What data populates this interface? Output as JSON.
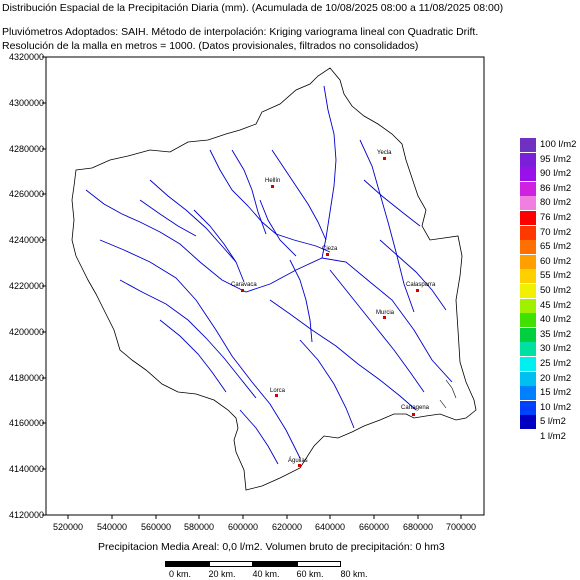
{
  "header": {
    "title_line": "Distribución Espacial de la Precipitación Diaria (mm). (Acumulada de 10/08/2025 08:00 a 11/08/2025 08:00)",
    "method_line": "Pluviómetros Adoptados: SAIH.  Método de interpolación: Kriging variograma lineal con Quadratic Drift.",
    "resolution_line": "Resolución de la malla en metros = 1000. (Datos provisionales, filtrados no consolidados)"
  },
  "axes": {
    "y_ticks": [
      "4320000",
      "4300000",
      "4280000",
      "4260000",
      "4240000",
      "4220000",
      "4200000",
      "4180000",
      "4160000",
      "4140000",
      "4120000"
    ],
    "x_ticks": [
      "520000",
      "540000",
      "560000",
      "580000",
      "600000",
      "620000",
      "640000",
      "660000",
      "680000",
      "700000"
    ]
  },
  "legend": [
    {
      "label": "100 l/m2",
      "color": "#7030c0"
    },
    {
      "label": "95 l/m2",
      "color": "#7a20d8"
    },
    {
      "label": "90 l/m2",
      "color": "#9a10e8"
    },
    {
      "label": "86 l/m2",
      "color": "#d020e0"
    },
    {
      "label": "80 l/m2",
      "color": "#f080e0"
    },
    {
      "label": "76 l/m2",
      "color": "#ff0000"
    },
    {
      "label": "70 l/m2",
      "color": "#ff3800"
    },
    {
      "label": "65 l/m2",
      "color": "#ff7000"
    },
    {
      "label": "60 l/m2",
      "color": "#ffa000"
    },
    {
      "label": "55 l/m2",
      "color": "#ffd000"
    },
    {
      "label": "50 l/m2",
      "color": "#f0f000"
    },
    {
      "label": "45 l/m2",
      "color": "#a0f000"
    },
    {
      "label": "40 l/m2",
      "color": "#40e000"
    },
    {
      "label": "35 l/m2",
      "color": "#00d040"
    },
    {
      "label": "30 l/m2",
      "color": "#00e0a0"
    },
    {
      "label": "25 l/m2",
      "color": "#00f0f0"
    },
    {
      "label": "20 l/m2",
      "color": "#00c0f0"
    },
    {
      "label": "15 l/m2",
      "color": "#0080ff"
    },
    {
      "label": "10 l/m2",
      "color": "#0040ff"
    },
    {
      "label": "5 l/m2",
      "color": "#0000c0"
    },
    {
      "label": "1 l/m2",
      "color": "#ffffff"
    }
  ],
  "cities": [
    "Yecla",
    "Hellín",
    "Cieza",
    "Caravaca",
    "Calasparra",
    "Murcia",
    "Lorca",
    "Cartagena",
    "Águilas"
  ],
  "footer": {
    "areal_text": "Precipitacion Media Areal: 0,0 l/m2. Volumen bruto de precipitación: 0 hm3",
    "scale_labels": [
      "0 km.",
      "20 km.",
      "40 km.",
      "60 km.",
      "80 km."
    ]
  },
  "colors": {
    "river": "#0000cc",
    "basin_outline": "#000000",
    "frame": "#000000"
  }
}
